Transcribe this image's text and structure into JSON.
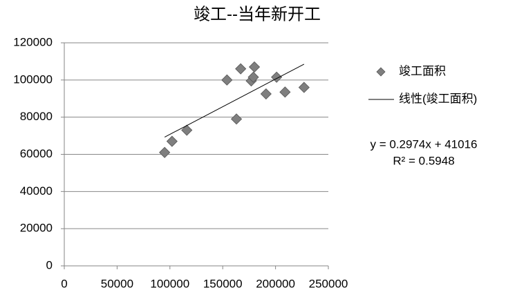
{
  "chart_data": {
    "type": "scatter",
    "title": "竣工--当年新开工",
    "series": [
      {
        "name": "竣工面积",
        "type": "scatter",
        "color": "#7f7f7f",
        "x": [
          95000,
          102000,
          116000,
          154000,
          163000,
          167000,
          180000,
          177000,
          179000,
          191000,
          201000,
          209000,
          227000
        ],
        "values": [
          61000,
          67000,
          73000,
          100000,
          79000,
          106000,
          107000,
          99500,
          101500,
          92500,
          101500,
          93500,
          96000
        ]
      },
      {
        "name": "线性(竣工面积)",
        "type": "line",
        "color": "#000000",
        "x": [
          95000,
          227000
        ],
        "values": [
          69269,
          108526
        ]
      }
    ],
    "annotations": [
      "y = 0.2974x + 41016",
      "R² = 0.5948"
    ],
    "xlim": [
      0,
      250000
    ],
    "xticks": [
      0,
      50000,
      100000,
      150000,
      200000,
      250000
    ],
    "ylim": [
      0,
      120000
    ],
    "yticks": [
      0,
      20000,
      40000,
      60000,
      80000,
      100000,
      120000
    ],
    "grid": true
  }
}
